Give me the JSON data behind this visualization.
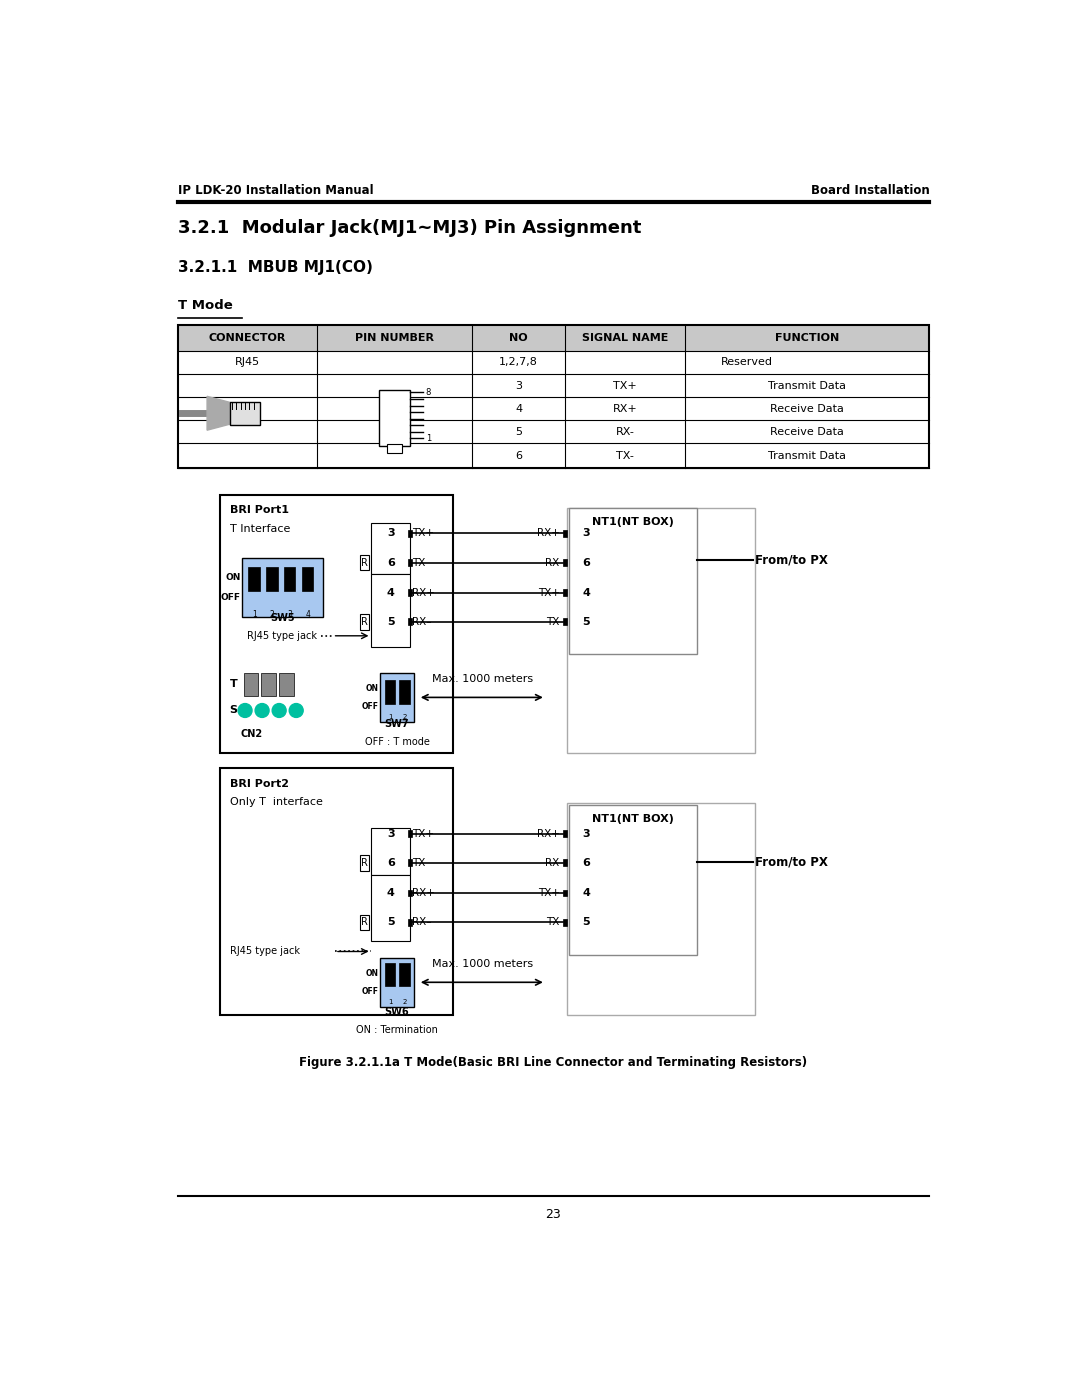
{
  "header_left": "IP LDK-20 Installation Manual",
  "header_right": "Board Installation",
  "title1": "3.2.1  Modular Jack(MJ1~MJ3) Pin Assignment",
  "title2": "3.2.1.1  MBUB MJ1(CO)",
  "section_label": "T Mode",
  "table_headers": [
    "CONNECTOR",
    "PIN NUMBER",
    "NO",
    "SIGNAL NAME",
    "FUNCTION"
  ],
  "figure_caption": "Figure 3.2.1.1a T Mode(Basic BRI Line Connector and Terminating Resistors)",
  "page_number": "23",
  "bg_color": "#ffffff"
}
